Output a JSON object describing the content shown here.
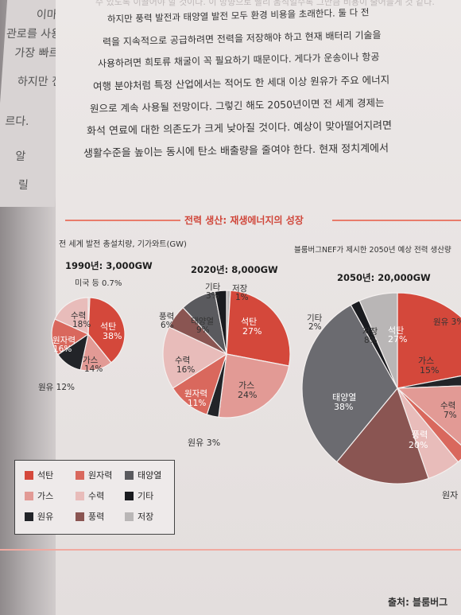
{
  "left_page": {
    "fragments": [
      "이마테",
      "관로를 사용",
      "가장 빠르",
      "하지만 전",
      "르다.",
      "알",
      "릴"
    ]
  },
  "paragraph": [
    "수 있도록 이끌어야 할 것이다. 이 방향으로 빨리 움직일수록 그만큼 비용이 줄어들게 것 같다.",
    "하지만 풍력 발전과 태양열 발전 모두 환경 비용을 초래한다. 둘 다 전",
    "력을 지속적으로 공급하려면 전력을 저장해야 하고 현재 배터리 기술을",
    "사용하려면 희토류 채굴이 꼭 필요하기 때문이다. 게다가 운송이나 항공",
    "여행 분야처럼 특정 산업에서는 적어도 한 세대 이상 원유가 주요 에너지",
    "원으로 계속 사용될 전망이다. 그렇긴 해도 2050년이면 전 세계 경제는",
    "화석 연료에 대한 의존도가 크게 낮아질 것이다. 예상이 맞아떨어지려면",
    "생활수준을 높이는 동시에 탄소 배출량을 줄여야 한다. 현재 정치계에서"
  ],
  "chart_data": [
    {
      "type": "pie",
      "title": "1990년: 3,000GW",
      "labels": [
        "석탄",
        "가스",
        "원유",
        "원자력",
        "수력",
        "미국 등"
      ],
      "values": [
        38,
        14,
        12,
        16,
        18,
        0.7
      ],
      "colors": [
        "#d4483b",
        "#e29a95",
        "#222428",
        "#d9685d",
        "#e8bcba",
        "#c9c6c6"
      ]
    },
    {
      "type": "pie",
      "title": "2020년: 8,000GW",
      "labels": [
        "석탄",
        "가스",
        "원유",
        "원자력",
        "수력",
        "풍력",
        "태양열",
        "기타",
        "저장"
      ],
      "values": [
        27,
        24,
        3,
        11,
        16,
        6,
        9,
        3,
        1
      ],
      "colors": [
        "#d4483b",
        "#e29a95",
        "#222428",
        "#d9685d",
        "#e8bcba",
        "#8a5552",
        "#5a5a5e",
        "#1a1b1f",
        "#b9b6b6"
      ]
    },
    {
      "type": "pie",
      "title": "2050년: 20,000GW",
      "labels": [
        "석탄",
        "가스",
        "원자력",
        "수력",
        "풍력",
        "태양열",
        "기타",
        "저장",
        "원유"
      ],
      "values": [
        27,
        15,
        3,
        7,
        20,
        38,
        2,
        8,
        3
      ],
      "colors": [
        "#d4483b",
        "#e29a95",
        "#d9685d",
        "#e8bcba",
        "#8a5552",
        "#6b6b70",
        "#1a1b1f",
        "#b9b6b6",
        "#222428"
      ]
    }
  ],
  "figure": {
    "title": "전력 생산: 재생에너지의 성장",
    "subtitle": "전 세계 발전 총설치량, 기가와트(GW)",
    "forecast_note": "블룸버그NEF가 제시한 2050년 예상 전력 생산량",
    "years": [
      "1990년: 3,000GW",
      "2020년: 8,000GW",
      "2050년: 20,000GW"
    ],
    "labels_1990": [
      "미국 등 0.7%",
      "수력",
      "18%",
      "석탄",
      "38%",
      "원자력",
      "16%",
      "가스",
      "14%",
      "원유 12%"
    ],
    "labels_2020": [
      "기타",
      "3%",
      "저장",
      "1%",
      "풍력",
      "6%",
      "태양열",
      "9%",
      "석탄",
      "27%",
      "수력",
      "16%",
      "가스",
      "24%",
      "원자력",
      "11%",
      "원유 3%"
    ],
    "labels_2050": [
      "기타",
      "2%",
      "저장",
      "8%",
      "석탄",
      "27%",
      "원유 3%",
      "가스",
      "15%",
      "태양열",
      "38%",
      "수력",
      "7%",
      "풍력",
      "20%",
      "원자"
    ],
    "legend": [
      {
        "label": "석탄",
        "color": "#d4483b"
      },
      {
        "label": "원자력",
        "color": "#d9685d"
      },
      {
        "label": "태양열",
        "color": "#5a5a5e"
      },
      {
        "label": "가스",
        "color": "#e29a95"
      },
      {
        "label": "수력",
        "color": "#e8bcba"
      },
      {
        "label": "기타",
        "color": "#1a1b1f"
      },
      {
        "label": "원유",
        "color": "#222428"
      },
      {
        "label": "풍력",
        "color": "#8a5552"
      },
      {
        "label": "저장",
        "color": "#b9b6b6"
      }
    ],
    "source": "출처: 블룸버그"
  }
}
